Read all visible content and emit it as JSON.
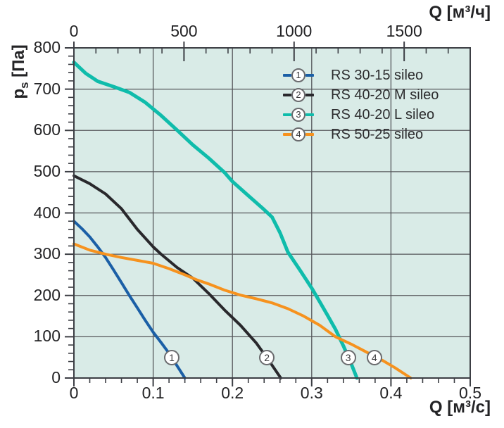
{
  "colors": {
    "plot_bg": "#d9ebe7",
    "grid": "#55565a",
    "border": "#3c3e44",
    "text": "#232325",
    "marker_border": "#6a6b6e"
  },
  "axes_titles": {
    "top": "Q [м³/ч]",
    "bottom": "Q [м³/с]",
    "left_symbol": "p",
    "left_subscript": "s",
    "left_unit": " [Па]"
  },
  "chart_data": {
    "type": "line",
    "title": "",
    "x_bottom": {
      "label": "Q [м³/с]",
      "range": [
        0,
        0.5
      ],
      "major_values": [
        0,
        0.1,
        0.2,
        0.3,
        0.4,
        0.5
      ],
      "major_labels": [
        "0",
        "0.1",
        "0.2",
        "0.3",
        "0.4",
        "0.5"
      ],
      "minor_step": 0.02
    },
    "x_top": {
      "label": "Q [м³/ч]",
      "range": [
        0,
        1800
      ],
      "major_values": [
        0,
        500,
        1000,
        1500
      ],
      "major_labels": [
        "0",
        "500",
        "1000",
        "1500"
      ],
      "minor_step": 100
    },
    "y_left": {
      "label": "pₛ [Па]",
      "range": [
        0,
        800
      ],
      "major_values": [
        800,
        700,
        600,
        500,
        400,
        300,
        200,
        100,
        0
      ],
      "major_labels": [
        "800",
        "700",
        "600",
        "500",
        "400",
        "300",
        "200",
        "100",
        "0"
      ],
      "minor_step": 20
    },
    "grid": true,
    "legend_position": "top-right-inside",
    "series": [
      {
        "id": "1",
        "name": "RS 30-15 sileo",
        "color": "#1b5fa6",
        "width": 4,
        "points": [
          [
            0,
            380
          ],
          [
            0.01,
            362
          ],
          [
            0.02,
            342
          ],
          [
            0.03,
            318
          ],
          [
            0.04,
            292
          ],
          [
            0.05,
            262
          ],
          [
            0.06,
            231
          ],
          [
            0.07,
            200
          ],
          [
            0.08,
            170
          ],
          [
            0.09,
            140
          ],
          [
            0.1,
            111
          ],
          [
            0.11,
            86
          ],
          [
            0.12,
            60
          ],
          [
            0.13,
            30
          ],
          [
            0.14,
            0
          ]
        ]
      },
      {
        "id": "2",
        "name": "RS 40-20 M sileo",
        "color": "#29282c",
        "width": 4,
        "points": [
          [
            0,
            490
          ],
          [
            0.02,
            471
          ],
          [
            0.04,
            446
          ],
          [
            0.06,
            410
          ],
          [
            0.08,
            360
          ],
          [
            0.1,
            318
          ],
          [
            0.11,
            300
          ],
          [
            0.13,
            268
          ],
          [
            0.15,
            242
          ],
          [
            0.17,
            205
          ],
          [
            0.19,
            165
          ],
          [
            0.21,
            128
          ],
          [
            0.23,
            85
          ],
          [
            0.245,
            45
          ],
          [
            0.261,
            0
          ]
        ]
      },
      {
        "id": "3",
        "name": "RS 40-20 L sileo",
        "color": "#0fbcab",
        "width": 5,
        "points": [
          [
            0,
            765
          ],
          [
            0.015,
            738
          ],
          [
            0.03,
            719
          ],
          [
            0.05,
            706
          ],
          [
            0.07,
            692
          ],
          [
            0.09,
            668
          ],
          [
            0.11,
            636
          ],
          [
            0.13,
            601
          ],
          [
            0.15,
            565
          ],
          [
            0.17,
            533
          ],
          [
            0.19,
            498
          ],
          [
            0.2,
            476
          ],
          [
            0.22,
            442
          ],
          [
            0.24,
            408
          ],
          [
            0.25,
            390
          ],
          [
            0.26,
            352
          ],
          [
            0.27,
            305
          ],
          [
            0.285,
            262
          ],
          [
            0.3,
            218
          ],
          [
            0.31,
            185
          ],
          [
            0.32,
            152
          ],
          [
            0.33,
            118
          ],
          [
            0.34,
            78
          ],
          [
            0.35,
            34
          ],
          [
            0.357,
            0
          ]
        ]
      },
      {
        "id": "4",
        "name": "RS 50-25 sileo",
        "color": "#f6921e",
        "width": 4,
        "points": [
          [
            0,
            325
          ],
          [
            0.02,
            310
          ],
          [
            0.04,
            300
          ],
          [
            0.06,
            292
          ],
          [
            0.08,
            285
          ],
          [
            0.1,
            278
          ],
          [
            0.12,
            265
          ],
          [
            0.14,
            250
          ],
          [
            0.155,
            238
          ],
          [
            0.17,
            228
          ],
          [
            0.19,
            213
          ],
          [
            0.21,
            201
          ],
          [
            0.23,
            192
          ],
          [
            0.25,
            182
          ],
          [
            0.27,
            168
          ],
          [
            0.29,
            150
          ],
          [
            0.31,
            128
          ],
          [
            0.33,
            100
          ],
          [
            0.35,
            82
          ],
          [
            0.37,
            62
          ],
          [
            0.39,
            42
          ],
          [
            0.405,
            25
          ],
          [
            0.425,
            0
          ]
        ]
      }
    ],
    "curve_markers": [
      {
        "label": "1",
        "q": 0.1235,
        "p": 49
      },
      {
        "label": "2",
        "q": 0.2435,
        "p": 49
      },
      {
        "label": "3",
        "q": 0.346,
        "p": 49
      },
      {
        "label": "4",
        "q": 0.379,
        "p": 49
      }
    ]
  }
}
